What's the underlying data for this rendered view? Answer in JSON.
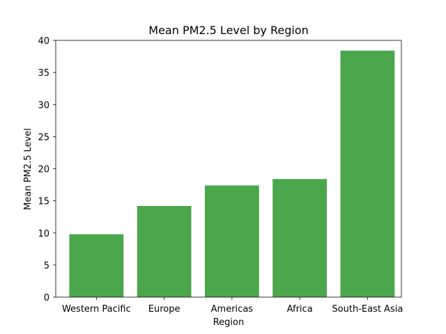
{
  "chart_data": {
    "type": "bar",
    "title": "Mean PM2.5 Level by Region",
    "xlabel": "Region",
    "ylabel": "Mean PM2.5 Level",
    "categories": [
      "Western Pacific",
      "Europe",
      "Americas",
      "Africa",
      "South-East Asia"
    ],
    "values": [
      9.8,
      14.2,
      17.4,
      18.4,
      38.4
    ],
    "ylim": [
      0,
      40
    ],
    "yticks": [
      0,
      5,
      10,
      15,
      20,
      25,
      30,
      35,
      40
    ],
    "bar_color": "#4ca64c",
    "grid": false,
    "legend": "none"
  }
}
